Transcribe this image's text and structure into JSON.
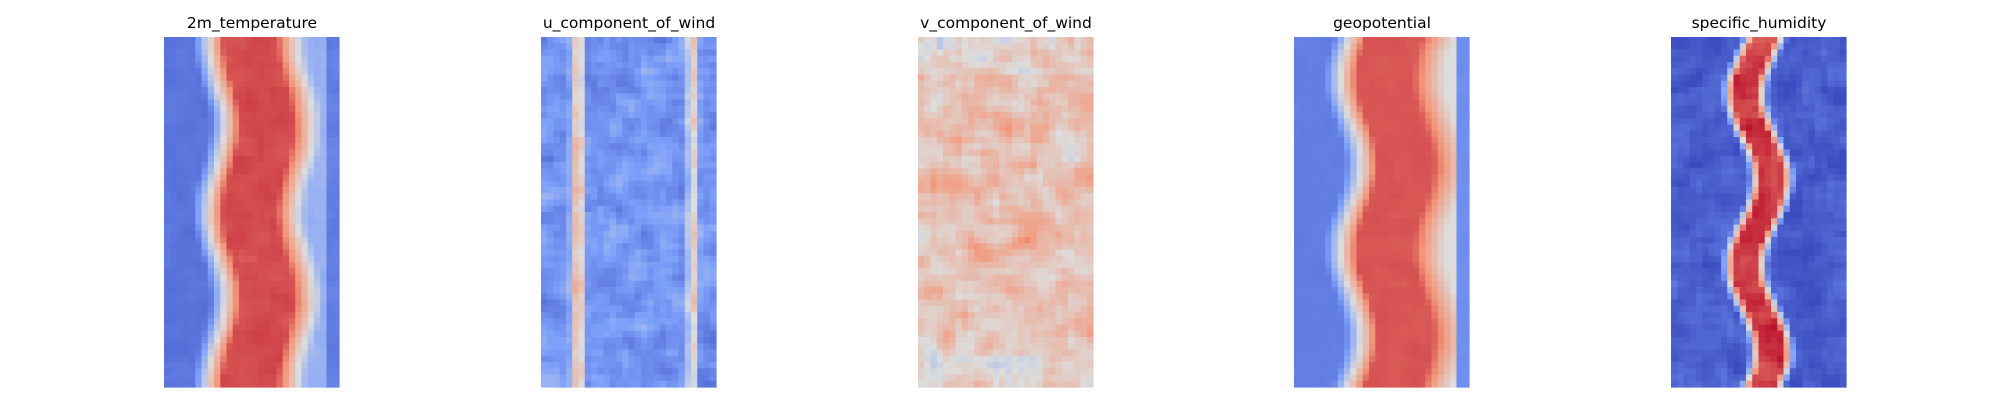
{
  "chart_data": [
    {
      "type": "heatmap",
      "title": "2m_temperature",
      "colormap": "coolwarm",
      "axes": "off",
      "pattern": {
        "rows": 56,
        "cols": 28,
        "center_value": 0.88,
        "edge_value": 0.05,
        "width_fraction": 0.52,
        "band_offset": 0.04,
        "wobble": 0.05,
        "noise": 0.04,
        "left_edge_value": 0.12,
        "right_edge_value": 0.32,
        "seed": 11
      }
    },
    {
      "type": "heatmap",
      "title": "u_component_of_wind",
      "colormap": "coolwarm",
      "axes": "off",
      "pattern": {
        "rows": 56,
        "cols": 28,
        "base_value": 0.22,
        "noise": 0.16,
        "warm_strips": [
          {
            "col_fraction": 0.2,
            "value": 0.72,
            "width": 0.06
          },
          {
            "col_fraction": 0.88,
            "value": 0.62,
            "width": 0.05
          }
        ],
        "seed": 23
      }
    },
    {
      "type": "heatmap",
      "title": "v_component_of_wind",
      "colormap": "coolwarm",
      "axes": "off",
      "pattern": {
        "rows": 56,
        "cols": 28,
        "base_value": 0.6,
        "noise": 0.2,
        "edge_neutral_rows": 6,
        "neutral_value": 0.5,
        "seed": 37
      }
    },
    {
      "type": "heatmap",
      "title": "geopotential",
      "colormap": "coolwarm",
      "axes": "off",
      "pattern": {
        "rows": 56,
        "cols": 28,
        "center_value": 0.86,
        "edge_value": 0.1,
        "width_fraction": 0.55,
        "band_offset": 0.08,
        "wobble": 0.06,
        "noise": 0.02,
        "left_edge_value": 0.15,
        "right_edge_value": 0.5,
        "seed": 41
      }
    },
    {
      "type": "heatmap",
      "title": "specific_humidity",
      "colormap": "coolwarm",
      "axes": "off",
      "pattern": {
        "rows": 56,
        "cols": 28,
        "center_value": 0.92,
        "edge_value": 0.05,
        "width_fraction": 0.22,
        "band_offset": 0.0,
        "wobble": 0.08,
        "noise": 0.12,
        "left_edge_value": 0.05,
        "right_edge_value": 0.05,
        "seed": 53
      }
    }
  ]
}
